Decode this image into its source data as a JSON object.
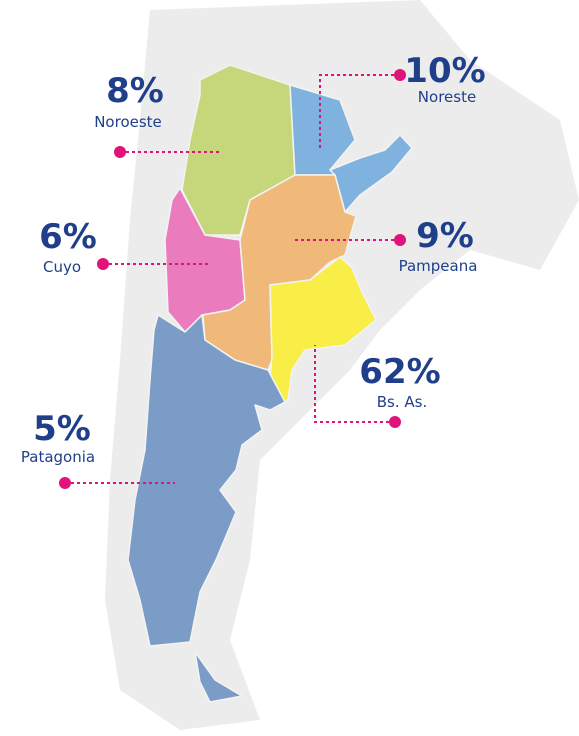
{
  "regions": [
    {
      "share": "8%",
      "name": "Noroeste"
    },
    {
      "share": "10%",
      "name": "Noreste"
    },
    {
      "share": "6%",
      "name": "Cuyo"
    },
    {
      "share": "9%",
      "name": "Pampeana"
    },
    {
      "share": "62%",
      "name": "Bs. As."
    },
    {
      "share": "5%",
      "name": "Patagonia"
    }
  ]
}
